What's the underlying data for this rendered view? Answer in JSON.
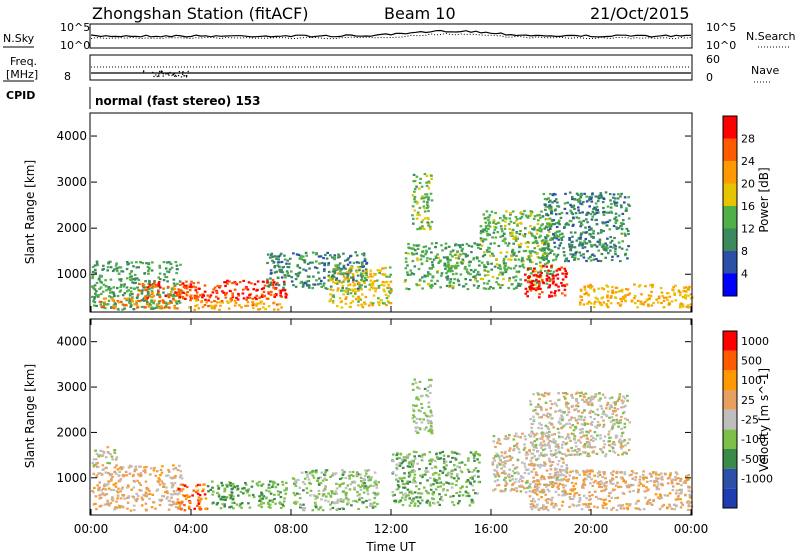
{
  "header": {
    "station": "Zhongshan Station (fitACF)",
    "beam": "Beam 10",
    "date": "21/Oct/2015"
  },
  "noise_panel": {
    "left_label": "N.Sky",
    "right_label": "N.Search",
    "left_ticks": [
      "10^5",
      "10^0"
    ],
    "right_ticks": [
      "10^5",
      "10^0"
    ]
  },
  "freq_panel": {
    "left_label_1": "Freq.",
    "left_label_2": "[MHz]",
    "left_tick": "8",
    "right_label": "Nave",
    "right_ticks": [
      "60",
      "0"
    ]
  },
  "cpid": {
    "label": "CPID",
    "value": "normal (fast stereo) 153"
  },
  "colors": {
    "power": [
      "#0000ff",
      "#2c4fa8",
      "#3b8a5e",
      "#4fb04a",
      "#e6c400",
      "#ff9900",
      "#ff5a00",
      "#ff0000"
    ],
    "velocity": [
      "#ff0000",
      "#ff5a00",
      "#ff9900",
      "#e8a060",
      "#bebebe",
      "#7cc04a",
      "#3a8a4a",
      "#2c4fa8",
      "#1f3cb0"
    ]
  },
  "chart_data": [
    {
      "type": "heatmap",
      "panel": "power",
      "ylabel": "Slant Range [km]",
      "ylim": [
        180,
        4500
      ],
      "yticks": [
        "1000",
        "2000",
        "3000",
        "4000"
      ],
      "colorbar_label": "Power [dB]",
      "colorbar_ticks": [
        "4",
        "8",
        "12",
        "16",
        "20",
        "24",
        "28"
      ],
      "clim": [
        0,
        32
      ],
      "echo_regions": [
        {
          "t0": 0.0,
          "t1": 3.6,
          "r0": 250,
          "r1": 1300,
          "level": 12
        },
        {
          "t0": 0.3,
          "t1": 3.4,
          "r0": 280,
          "r1": 500,
          "level": 24
        },
        {
          "t0": 1.8,
          "t1": 4.2,
          "r0": 500,
          "r1": 850,
          "level": 26
        },
        {
          "t0": 3.6,
          "t1": 7.8,
          "r0": 450,
          "r1": 900,
          "level": 28
        },
        {
          "t0": 3.8,
          "t1": 7.6,
          "r0": 250,
          "r1": 450,
          "level": 22
        },
        {
          "t0": 7.0,
          "t1": 11.0,
          "r0": 700,
          "r1": 1500,
          "level": 10
        },
        {
          "t0": 9.5,
          "t1": 12.0,
          "r0": 300,
          "r1": 1200,
          "level": 18
        },
        {
          "t0": 12.5,
          "t1": 15.5,
          "r0": 700,
          "r1": 1700,
          "level": 13
        },
        {
          "t0": 12.8,
          "t1": 13.6,
          "r0": 2000,
          "r1": 3200,
          "level": 15
        },
        {
          "t0": 15.5,
          "t1": 18.5,
          "r0": 700,
          "r1": 2400,
          "level": 14
        },
        {
          "t0": 17.3,
          "t1": 19.0,
          "r0": 500,
          "r1": 1200,
          "level": 30
        },
        {
          "t0": 18.0,
          "t1": 21.5,
          "r0": 1300,
          "r1": 2800,
          "level": 10
        },
        {
          "t0": 19.5,
          "t1": 24.0,
          "r0": 300,
          "r1": 800,
          "level": 20
        }
      ]
    },
    {
      "type": "heatmap",
      "panel": "velocity",
      "ylabel": "Slant Range [km]",
      "ylim": [
        180,
        4500
      ],
      "yticks": [
        "1000",
        "2000",
        "3000",
        "4000"
      ],
      "colorbar_label": "Velocity [m s^-1]",
      "colorbar_ticks": [
        "1000",
        "500",
        "100",
        "25",
        "-25",
        "-100",
        "-500",
        "-1000"
      ],
      "clim": [
        -1200,
        1200
      ],
      "echo_regions": [
        {
          "t0": 0.0,
          "t1": 3.6,
          "r0": 300,
          "r1": 1300,
          "level": 200
        },
        {
          "t0": 0.0,
          "t1": 1.0,
          "r0": 1300,
          "r1": 1700,
          "level": 0
        },
        {
          "t0": 3.4,
          "t1": 4.6,
          "r0": 300,
          "r1": 900,
          "level": 800
        },
        {
          "t0": 4.6,
          "t1": 7.8,
          "r0": 350,
          "r1": 950,
          "level": -400
        },
        {
          "t0": 8.0,
          "t1": 11.5,
          "r0": 300,
          "r1": 1200,
          "level": -200
        },
        {
          "t0": 12.0,
          "t1": 15.5,
          "r0": 400,
          "r1": 1600,
          "level": -300
        },
        {
          "t0": 12.8,
          "t1": 13.6,
          "r0": 2000,
          "r1": 3200,
          "level": -150
        },
        {
          "t0": 16.0,
          "t1": 19.0,
          "r0": 700,
          "r1": 2000,
          "level": 60
        },
        {
          "t0": 17.5,
          "t1": 24.0,
          "r0": 300,
          "r1": 1200,
          "level": 200
        },
        {
          "t0": 17.5,
          "t1": 21.5,
          "r0": 1500,
          "r1": 2900,
          "level": 0
        }
      ]
    }
  ],
  "x_axis": {
    "label": "Time UT",
    "ticks": [
      "00:00",
      "04:00",
      "08:00",
      "12:00",
      "16:00",
      "20:00",
      "00:00"
    ],
    "hours": [
      0,
      4,
      8,
      12,
      16,
      20,
      24
    ]
  }
}
